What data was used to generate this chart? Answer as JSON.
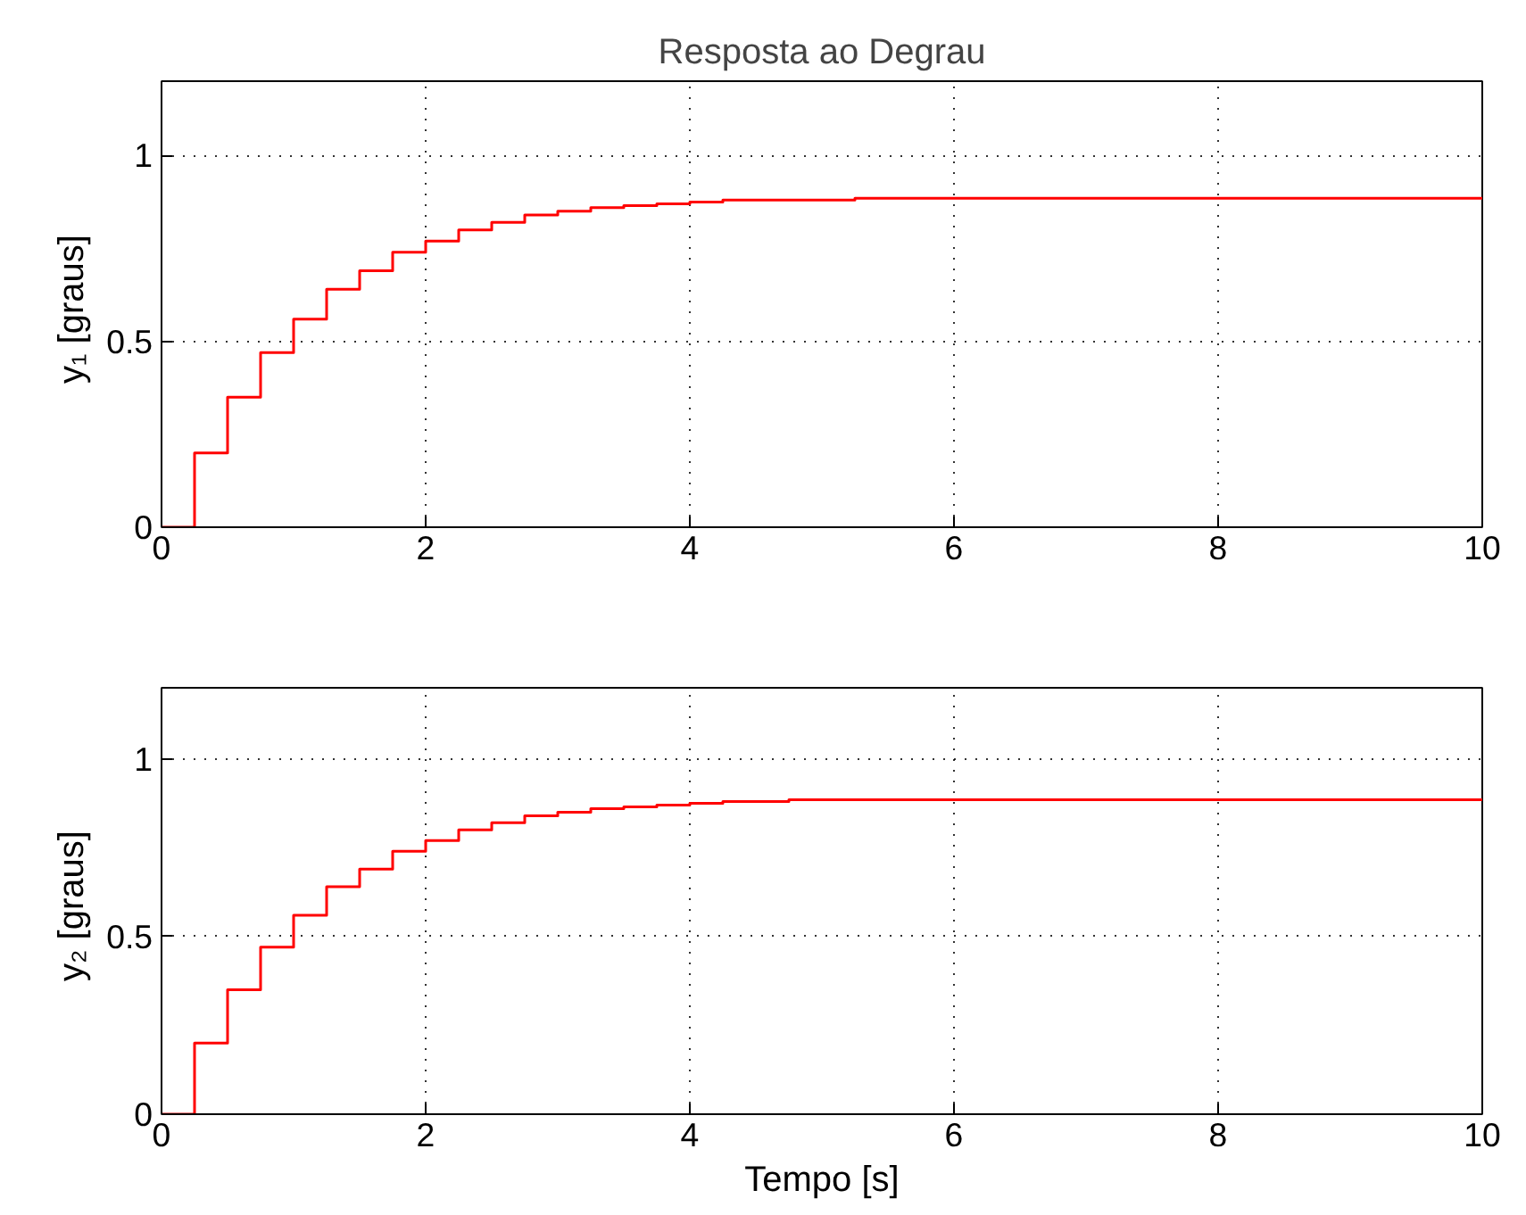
{
  "chart_data": [
    {
      "type": "step",
      "title": "Resposta ao Degrau",
      "ylabel": "y₁  [graus]",
      "xlim": [
        0,
        10
      ],
      "ylim": [
        0,
        1.2
      ],
      "xticks": [
        0,
        2,
        4,
        6,
        8,
        10
      ],
      "yticks": [
        0,
        0.5,
        1
      ],
      "grid": true,
      "series": [
        {
          "color": "#ff0000",
          "x": [
            0,
            0.25,
            0.5,
            0.75,
            1,
            1.25,
            1.5,
            1.75,
            2,
            2.25,
            2.5,
            2.75,
            3,
            3.25,
            3.5,
            3.75,
            4,
            4.25,
            5.25,
            10
          ],
          "values": [
            0,
            0.2,
            0.35,
            0.47,
            0.56,
            0.64,
            0.69,
            0.74,
            0.77,
            0.8,
            0.82,
            0.84,
            0.85,
            0.86,
            0.865,
            0.87,
            0.875,
            0.88,
            0.885,
            0.885
          ]
        }
      ]
    },
    {
      "type": "step",
      "xlabel": "Tempo [s]",
      "ylabel": "y₂  [graus]",
      "xlim": [
        0,
        10
      ],
      "ylim": [
        0,
        1.2
      ],
      "xticks": [
        0,
        2,
        4,
        6,
        8,
        10
      ],
      "yticks": [
        0,
        0.5,
        1
      ],
      "grid": true,
      "series": [
        {
          "color": "#ff0000",
          "x": [
            0,
            0.25,
            0.5,
            0.75,
            1,
            1.25,
            1.5,
            1.75,
            2,
            2.25,
            2.5,
            2.75,
            3,
            3.25,
            3.5,
            3.75,
            4,
            4.25,
            4.75,
            10
          ],
          "values": [
            0,
            0.2,
            0.35,
            0.47,
            0.56,
            0.64,
            0.69,
            0.74,
            0.77,
            0.8,
            0.82,
            0.84,
            0.85,
            0.86,
            0.865,
            0.87,
            0.875,
            0.88,
            0.885,
            0.885
          ]
        }
      ]
    }
  ]
}
